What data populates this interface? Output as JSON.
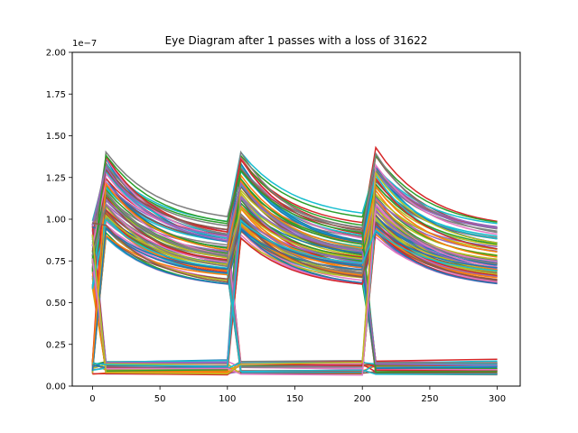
{
  "chart_data": {
    "type": "line",
    "title": "Eye Diagram after 1 passes with a loss of 31622",
    "xlabel": "",
    "ylabel": "",
    "y_scale_label": "1e−7",
    "y_scale": 1e-07,
    "xlim": [
      -15,
      317
    ],
    "ylim": [
      0,
      2e-07
    ],
    "x_ticks": [
      0,
      50,
      100,
      150,
      200,
      250,
      300
    ],
    "x_tick_labels": [
      "0",
      "50",
      "100",
      "150",
      "200",
      "250",
      "300"
    ],
    "y_ticks": [
      0,
      2.5e-08,
      5e-08,
      7.5e-08,
      1e-07,
      1.25e-07,
      1.5e-07,
      1.75e-07,
      2e-07
    ],
    "y_tick_labels": [
      "0.00",
      "0.25",
      "0.50",
      "0.75",
      "1.00",
      "1.25",
      "1.50",
      "1.75",
      "2.00"
    ],
    "grid": false,
    "legend": "none",
    "trace_model": {
      "samples_per_bit": 100,
      "rise_samples": 10,
      "bits": 3,
      "x_end": 302,
      "high_peak_range": [
        9.5e-08,
        1.44e-07
      ],
      "high_decay_end_range": [
        5.8e-08,
        1e-07
      ],
      "low_level_range": [
        7e-09,
        1.5e-08
      ],
      "trace_count": 120
    },
    "colors": [
      "#1f77b4",
      "#ff7f0e",
      "#2ca02c",
      "#d62728",
      "#9467bd",
      "#8c564b",
      "#e377c2",
      "#7f7f7f",
      "#bcbd22",
      "#17becf"
    ]
  }
}
